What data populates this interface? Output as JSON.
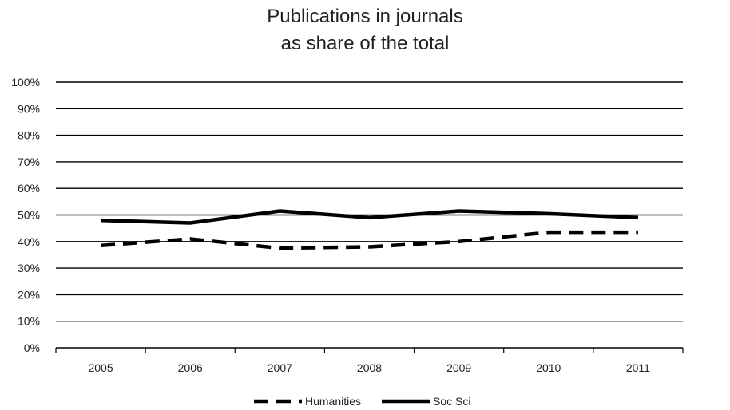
{
  "chart_data": {
    "type": "line",
    "title_lines": [
      "Publications in journals",
      "as share of the total"
    ],
    "categories": [
      "2005",
      "2006",
      "2007",
      "2008",
      "2009",
      "2010",
      "2011"
    ],
    "series": [
      {
        "name": "Humanities",
        "values": [
          38.5,
          41,
          37.5,
          38,
          40,
          43.5,
          43.5
        ],
        "style": "dashed",
        "color": "#000000"
      },
      {
        "name": "Soc Sci",
        "values": [
          48,
          47,
          51.5,
          49,
          51.5,
          50.5,
          49
        ],
        "style": "solid",
        "color": "#000000"
      }
    ],
    "y_ticks": [
      "0%",
      "10%",
      "20%",
      "30%",
      "40%",
      "50%",
      "60%",
      "70%",
      "80%",
      "90%",
      "100%"
    ],
    "ylim": [
      0,
      100
    ],
    "grid": true,
    "legend_position": "bottom"
  }
}
